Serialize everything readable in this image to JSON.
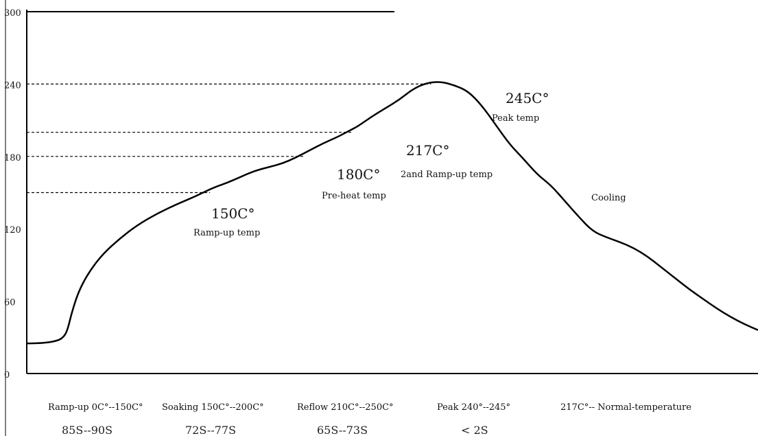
{
  "chart_data": {
    "type": "line",
    "title": "",
    "xlabel": "",
    "ylabel": "",
    "ylim": [
      0,
      300
    ],
    "y_ticks": [
      "0",
      "60",
      "120",
      "180",
      "240",
      "300"
    ],
    "grid": false,
    "series": [
      {
        "x": [
          0,
          4,
          9,
          11,
          12,
          13,
          15,
          18,
          22,
          27,
          32,
          38,
          44,
          49,
          54,
          58,
          62,
          66,
          70,
          74,
          78,
          82,
          86,
          90,
          92,
          94,
          96,
          100,
          104,
          108,
          112,
          116,
          120,
          124,
          128,
          132,
          136,
          140,
          144,
          148,
          152,
          156,
          160,
          164,
          168,
          172,
          176,
          180,
          184,
          188,
          192,
          196,
          200,
          204,
          208,
          212
        ],
        "y": [
          25,
          25,
          27,
          31,
          38,
          50,
          68,
          84,
          99,
          112,
          123,
          133,
          141,
          147,
          154,
          158,
          163,
          168,
          171,
          174,
          179,
          185,
          191,
          196,
          199,
          202,
          205,
          213,
          220,
          227,
          236,
          241,
          242,
          239,
          234,
          222,
          206,
          190,
          178,
          165,
          156,
          143,
          130,
          118,
          113,
          109,
          104,
          97,
          88,
          79,
          70,
          62,
          54,
          47,
          41,
          36
        ]
      }
    ],
    "reference_lines": [
      {
        "label": "240",
        "y": 240
      },
      {
        "label": "200",
        "y": 200
      },
      {
        "label": "180",
        "y": 180
      },
      {
        "label": "150",
        "y": 150
      }
    ],
    "annotations": [
      {
        "value": "150C°",
        "caption": "Ramp-up temp"
      },
      {
        "value": "180C°",
        "caption": "Pre-heat temp"
      },
      {
        "value": "217C°",
        "caption": "2and Ramp-up temp"
      },
      {
        "value": "245C°",
        "caption": "Peak temp"
      },
      {
        "value": "",
        "caption": "Cooling"
      }
    ],
    "phases": [
      {
        "label": "Ramp-up 0C°--150C°",
        "duration": "85S--90S"
      },
      {
        "label": "Soaking 150C°--200C°",
        "duration": "72S--77S"
      },
      {
        "label": "Reflow 210C°--250C°",
        "duration": "65S--73S"
      },
      {
        "label": "Peak 240°--245°",
        "duration": "< 2S"
      },
      {
        "label": "217C°-- Normal-temperature",
        "duration": ""
      }
    ]
  }
}
